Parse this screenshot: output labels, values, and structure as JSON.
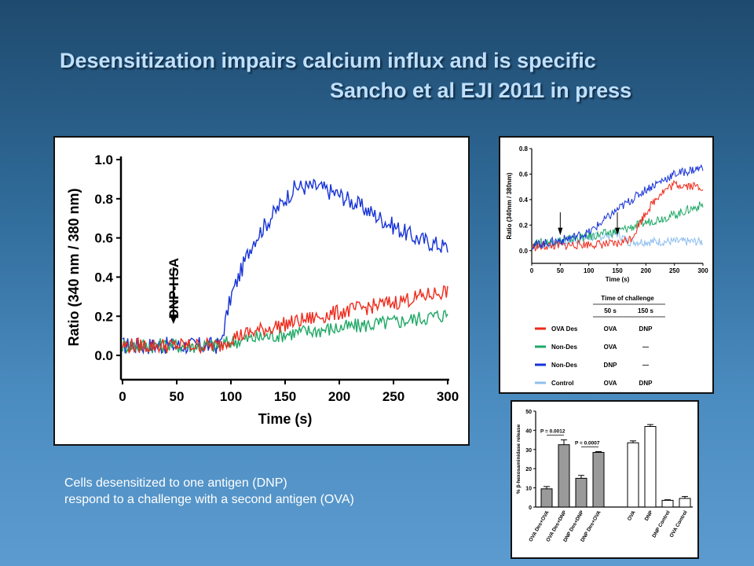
{
  "slide": {
    "title_line1": "Desensitization impairs calcium influx and is specific",
    "title_line2": "Sancho et al EJI 2011 in press",
    "caption_line1": "Cells desensitized to one antigen (DNP)",
    "caption_line2": "respond to a challenge with a second antigen (OVA)"
  },
  "colors": {
    "red": "#ee2a1b",
    "green": "#1fa866",
    "blue": "#1733d6",
    "lightblue": "#8fbfef",
    "bar_gray": "#9a9a9a",
    "bar_white": "#ffffff"
  },
  "chart_data": [
    {
      "type": "line",
      "xlabel": "Time (s)",
      "ylabel": "Ratio (340 nm / 380 nm)",
      "xlim": [
        0,
        300
      ],
      "ylim": [
        -0.1,
        1.0
      ],
      "x_ticks": [
        "0",
        "50",
        "100",
        "150",
        "200",
        "250",
        "300"
      ],
      "y_ticks": [
        "0.0",
        "0.2",
        "0.4",
        "0.6",
        "0.8",
        "1.0"
      ],
      "annotation": {
        "text": "DNP-HSA",
        "x": 47
      },
      "series": [
        {
          "color": "blue",
          "x": [
            0,
            50,
            90,
            100,
            120,
            150,
            160,
            180,
            200,
            220,
            250,
            270,
            300
          ],
          "y": [
            0.05,
            0.05,
            0.05,
            0.3,
            0.58,
            0.8,
            0.86,
            0.86,
            0.82,
            0.76,
            0.66,
            0.6,
            0.55
          ]
        },
        {
          "color": "red",
          "x": [
            0,
            50,
            90,
            100,
            150,
            200,
            250,
            300
          ],
          "y": [
            0.05,
            0.05,
            0.05,
            0.09,
            0.16,
            0.22,
            0.27,
            0.33
          ]
        },
        {
          "color": "green",
          "x": [
            0,
            50,
            90,
            100,
            150,
            200,
            250,
            300
          ],
          "y": [
            0.05,
            0.05,
            0.05,
            0.07,
            0.11,
            0.14,
            0.17,
            0.21
          ]
        }
      ]
    },
    {
      "type": "line",
      "xlabel": "Time (s)",
      "ylabel": "Ratio (340nm / 380nm)",
      "xlim": [
        0,
        300
      ],
      "ylim": [
        -0.1,
        0.8
      ],
      "x_ticks": [
        "0",
        "50",
        "100",
        "150",
        "200",
        "250",
        "300"
      ],
      "y_ticks": [
        "0.0",
        "0.2",
        "0.4",
        "0.6",
        "0.8"
      ],
      "arrows_at_x": [
        50,
        150
      ],
      "legend": {
        "title": "Time of challenge",
        "columns": [
          "50 s",
          "150 s"
        ],
        "rows": [
          {
            "name": "OVA Des",
            "color": "red",
            "c1": "OVA",
            "c2": "DNP"
          },
          {
            "name": "Non-Des",
            "color": "green",
            "c1": "OVA",
            "c2": "—"
          },
          {
            "name": "Non-Des",
            "color": "blue",
            "c1": "DNP",
            "c2": "—"
          },
          {
            "name": "Control",
            "color": "lightblue",
            "c1": "OVA",
            "c2": "DNP"
          }
        ]
      },
      "series": [
        {
          "color": "blue",
          "x": [
            0,
            50,
            100,
            150,
            200,
            250,
            300
          ],
          "y": [
            0.04,
            0.08,
            0.14,
            0.32,
            0.48,
            0.6,
            0.65
          ]
        },
        {
          "color": "red",
          "x": [
            0,
            50,
            100,
            150,
            175,
            200,
            225,
            250,
            300
          ],
          "y": [
            0.03,
            0.04,
            0.05,
            0.05,
            0.1,
            0.3,
            0.45,
            0.52,
            0.5
          ]
        },
        {
          "color": "green",
          "x": [
            0,
            50,
            100,
            150,
            200,
            250,
            300
          ],
          "y": [
            0.05,
            0.08,
            0.11,
            0.15,
            0.22,
            0.28,
            0.36
          ]
        },
        {
          "color": "lightblue",
          "x": [
            0,
            50,
            100,
            150,
            170,
            200,
            250,
            300
          ],
          "y": [
            0.04,
            0.06,
            0.1,
            0.13,
            0.07,
            0.07,
            0.07,
            0.07
          ]
        }
      ]
    },
    {
      "type": "bar",
      "ylabel": "% β-hexosaminidase release",
      "ylim": [
        0,
        50
      ],
      "y_ticks": [
        "0",
        "10",
        "20",
        "30",
        "40",
        "50"
      ],
      "categories": [
        "OVA Des+OVA",
        "OVA Des+DNP",
        "DNP Des+DNP",
        "DNP Des+OVA",
        "OVA",
        "DNP",
        "DNP Control",
        "OVA Control"
      ],
      "values": [
        9.5,
        32.5,
        15,
        28.5,
        33.5,
        42,
        3.5,
        4.5
      ],
      "errors": [
        1.2,
        2.5,
        1.5,
        0.4,
        1,
        1,
        0.3,
        1
      ],
      "fills": [
        "gray",
        "gray",
        "gray",
        "gray",
        "white",
        "white",
        "white",
        "white"
      ],
      "annotations": [
        {
          "text": "P = 0.0012",
          "from": 0,
          "to": 1
        },
        {
          "text": "P = 0.0007",
          "from": 2,
          "to": 3
        }
      ]
    }
  ]
}
